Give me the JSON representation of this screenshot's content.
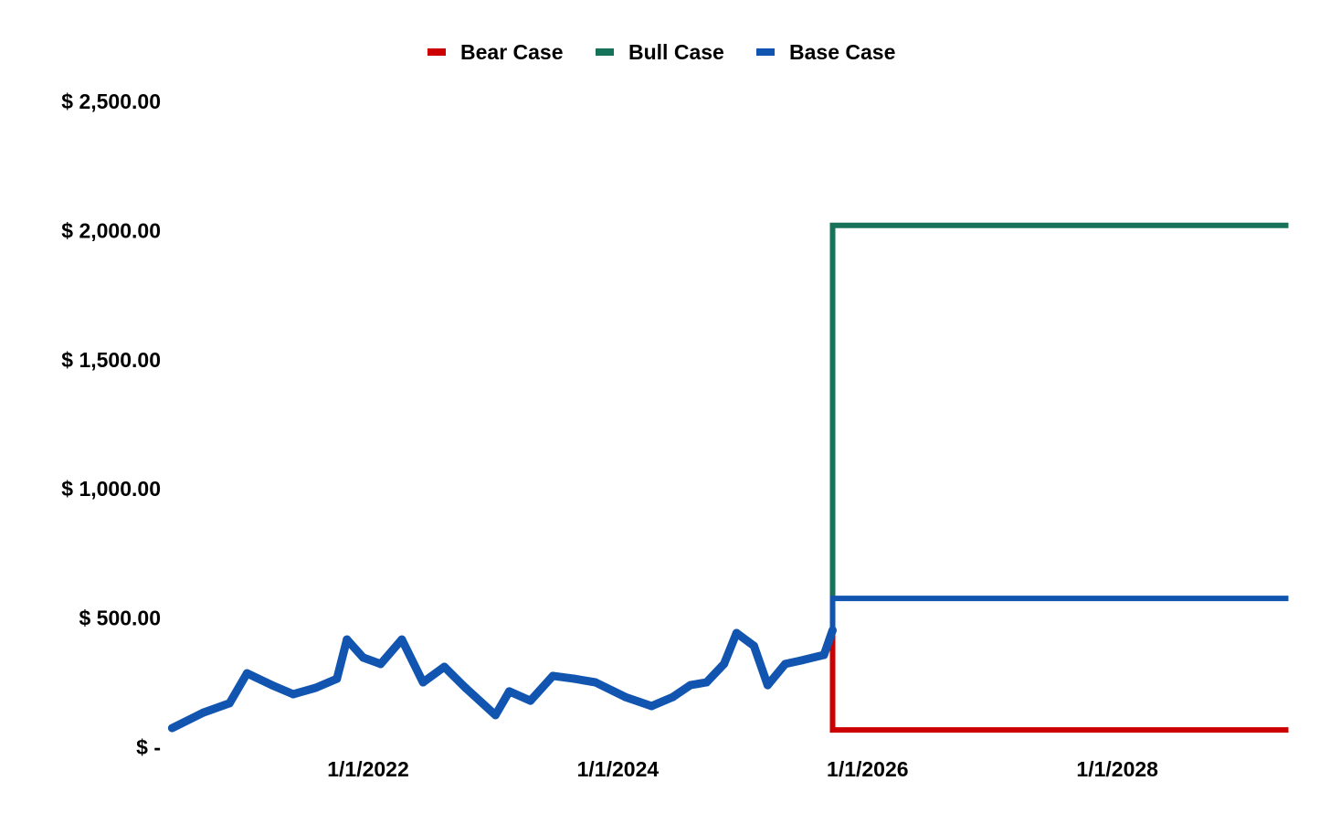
{
  "chart_data": {
    "type": "line",
    "title": "",
    "xlabel": "",
    "ylabel": "",
    "x_unit": "decimal year",
    "xlim": [
      2020.4,
      2029.37
    ],
    "ylim": [
      0,
      2500
    ],
    "grid": false,
    "legend_position": "top-center",
    "y_ticks": [
      0,
      500,
      1000,
      1500,
      2000,
      2500
    ],
    "y_tick_labels": [
      "$ -",
      "$ 500.00",
      "$ 1,000.00",
      "$ 1,500.00",
      "$ 2,000.00",
      "$ 2,500.00"
    ],
    "x_ticks": [
      2022,
      2024,
      2026,
      2028
    ],
    "x_tick_labels": [
      "1/1/2022",
      "1/1/2024",
      "1/1/2026",
      "1/1/2028"
    ],
    "colors": {
      "bear": "#cc0000",
      "bull": "#16735a",
      "base": "#1155b0"
    },
    "history": {
      "name": "Base Case",
      "x": [
        2020.43,
        2020.68,
        2020.89,
        2021.03,
        2021.23,
        2021.4,
        2021.58,
        2021.75,
        2021.83,
        2021.96,
        2022.1,
        2022.27,
        2022.44,
        2022.61,
        2022.78,
        2023.02,
        2023.13,
        2023.3,
        2023.48,
        2023.65,
        2023.82,
        2024.06,
        2024.27,
        2024.44,
        2024.58,
        2024.71,
        2024.85,
        2024.95,
        2025.09,
        2025.2,
        2025.34,
        2025.47,
        2025.65,
        2025.72
      ],
      "y": [
        74,
        134,
        170,
        286,
        240,
        205,
        230,
        265,
        417,
        347,
        322,
        417,
        251,
        311,
        230,
        124,
        216,
        180,
        276,
        265,
        251,
        194,
        159,
        194,
        240,
        251,
        322,
        442,
        392,
        240,
        322,
        336,
        357,
        453
      ]
    },
    "series": [
      {
        "name": "Bear Case",
        "key": "bear",
        "x": [
          2025.72,
          2025.72,
          2029.37
        ],
        "y": [
          453,
          67,
          67
        ]
      },
      {
        "name": "Bull Case",
        "key": "bull",
        "x": [
          2025.72,
          2025.72,
          2029.37
        ],
        "y": [
          453,
          2020,
          2020
        ]
      },
      {
        "name": "Base Case",
        "key": "base",
        "x": [
          2025.72,
          2025.72,
          2029.37
        ],
        "y": [
          453,
          576,
          576
        ]
      }
    ]
  }
}
